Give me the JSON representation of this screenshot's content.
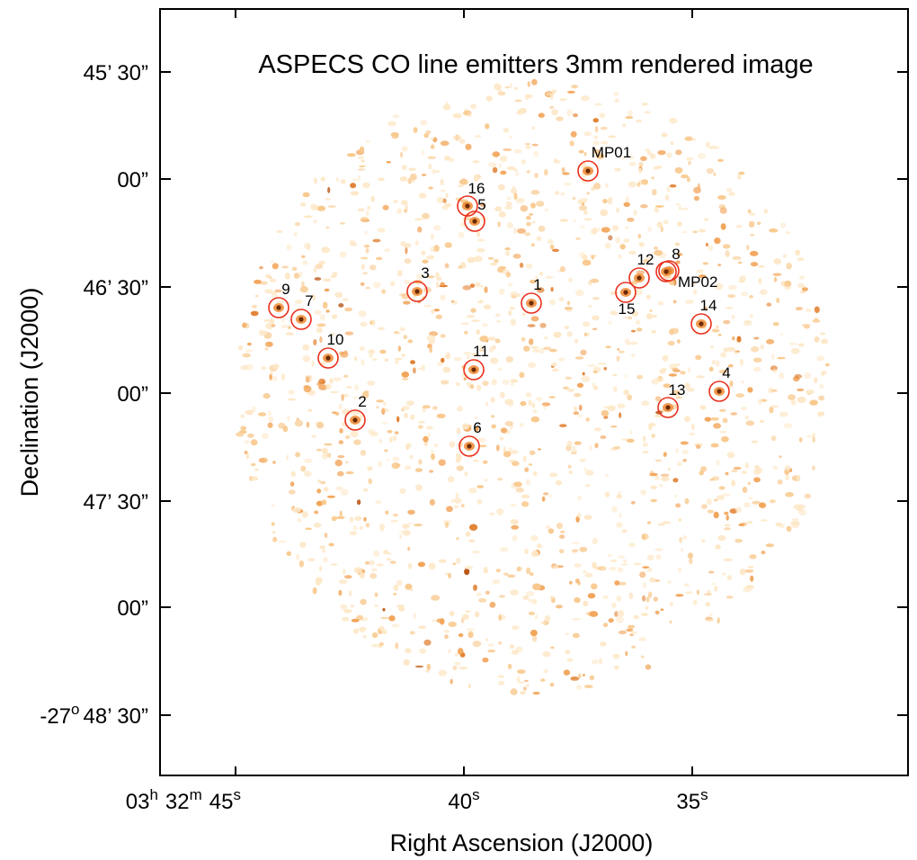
{
  "title": "ASPECS CO line emitters 3mm rendered image",
  "axes": {
    "xlabel": "Right Ascension (J2000)",
    "ylabel": "Declination (J2000)",
    "x_ticks": [
      {
        "h": "03",
        "m": "32",
        "s": "45"
      },
      {
        "s": "40"
      },
      {
        "s": "35"
      }
    ],
    "x_units": {
      "h": "h",
      "m": "m",
      "s": "s"
    },
    "y_ticks": [
      {
        "label": "45’ 30”"
      },
      {
        "label": "00”"
      },
      {
        "label": "46’ 30”"
      },
      {
        "label": "00”"
      },
      {
        "label": "47’ 30”"
      },
      {
        "label": "00”"
      },
      {
        "deg": "-27",
        "deg_unit": "o",
        "label": "48’ 30”"
      }
    ]
  },
  "colors": {
    "circle": "#e8301c",
    "noise": [
      "#fde8c8",
      "#f8c98e",
      "#f2a55a",
      "#e07c2a",
      "#b8520f"
    ],
    "frame": "#000000"
  },
  "sources": [
    {
      "label": "1"
    },
    {
      "label": "2"
    },
    {
      "label": "3"
    },
    {
      "label": "4"
    },
    {
      "label": "5"
    },
    {
      "label": "6"
    },
    {
      "label": "7"
    },
    {
      "label": "8"
    },
    {
      "label": "9"
    },
    {
      "label": "10"
    },
    {
      "label": "11"
    },
    {
      "label": "12"
    },
    {
      "label": "13"
    },
    {
      "label": "14"
    },
    {
      "label": "15"
    },
    {
      "label": "16"
    },
    {
      "label": "MP01"
    },
    {
      "label": "MP02"
    }
  ]
}
